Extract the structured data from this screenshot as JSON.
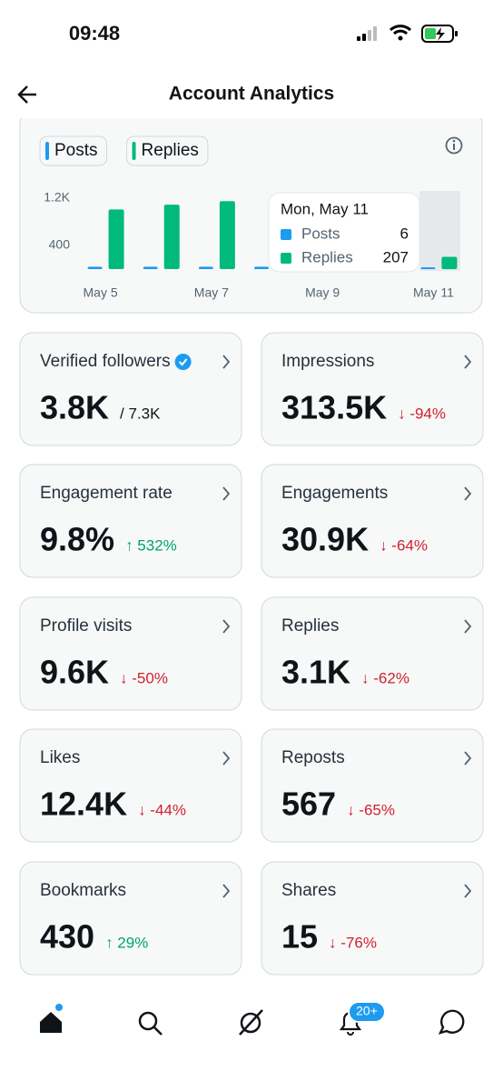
{
  "status_bar": {
    "time": "09:48"
  },
  "header": {
    "title": "Account Analytics"
  },
  "chart_data": {
    "type": "bar",
    "categories": [
      "May 5",
      null,
      "May 7",
      null,
      "May 9",
      null,
      "May 11"
    ],
    "series": [
      {
        "name": "Posts",
        "color": "#1d9bf0",
        "values": [
          40,
          40,
          40,
          40,
          null,
          null,
          6
        ]
      },
      {
        "name": "Replies",
        "color": "#00ba7c",
        "values": [
          1010,
          1090,
          1150,
          null,
          null,
          null,
          207
        ]
      }
    ],
    "ylim": [
      0,
      1300
    ],
    "yticks": [
      {
        "value": 1200,
        "label": "1.2K"
      },
      400
    ],
    "grid": false,
    "tooltip_title": "Mon, May 11"
  },
  "cards": [
    {
      "label": "Verified followers",
      "value": "3.8K",
      "total": "/ 7.3K",
      "verified": true
    },
    {
      "label": "Impressions",
      "value": "313.5K",
      "change": "↓ -94%",
      "trend": "down"
    },
    {
      "label": "Engagement rate",
      "value": "9.8%",
      "change": "↑ 532%",
      "trend": "up"
    },
    {
      "label": "Engagements",
      "value": "30.9K",
      "change": "↓ -64%",
      "trend": "down"
    },
    {
      "label": "Profile visits",
      "value": "9.6K",
      "change": "↓ -50%",
      "trend": "down"
    },
    {
      "label": "Replies",
      "value": "3.1K",
      "change": "↓ -62%",
      "trend": "down"
    },
    {
      "label": "Likes",
      "value": "12.4K",
      "change": "↓ -44%",
      "trend": "down"
    },
    {
      "label": "Reposts",
      "value": "567",
      "change": "↓ -65%",
      "trend": "down"
    },
    {
      "label": "Bookmarks",
      "value": "430",
      "change": "↑ 29%",
      "trend": "up"
    },
    {
      "label": "Shares",
      "value": "15",
      "change": "↓ -76%",
      "trend": "down"
    }
  ],
  "nav": {
    "badge": "20+"
  }
}
